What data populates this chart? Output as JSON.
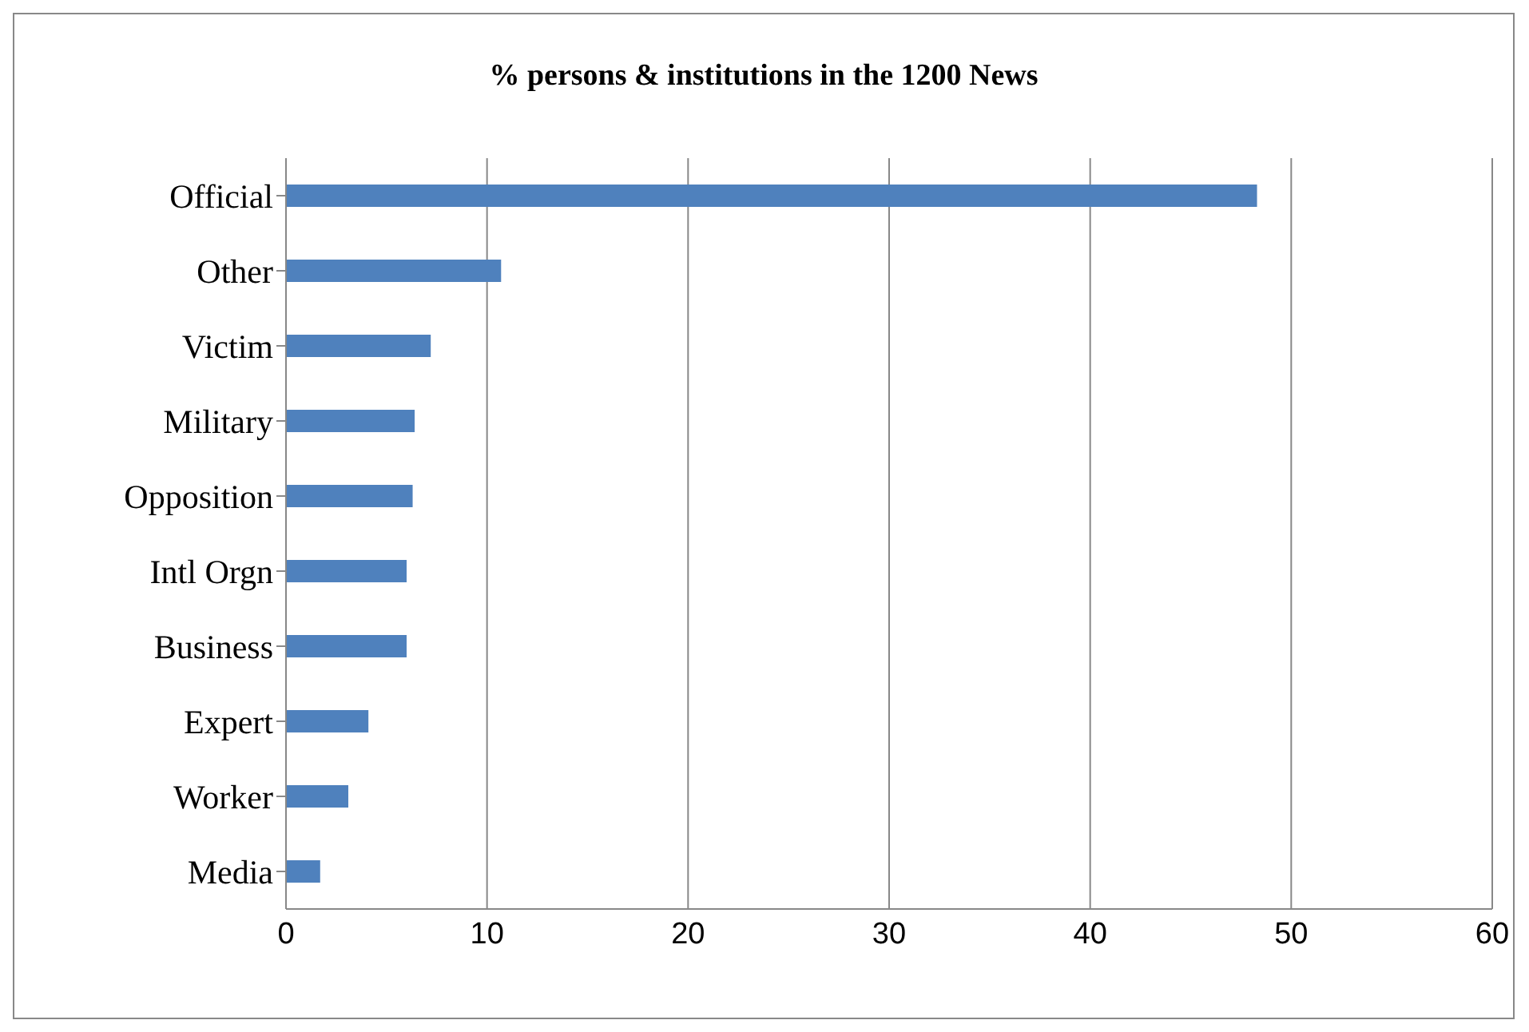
{
  "chart_data": {
    "type": "bar",
    "orientation": "horizontal",
    "title": "% persons & institutions in the 1200 News",
    "categories": [
      "Official",
      "Other",
      "Victim",
      "Military",
      "Opposition",
      "Intl Orgn",
      "Business",
      "Expert",
      "Worker",
      "Media"
    ],
    "values": [
      48.3,
      10.7,
      7.2,
      6.4,
      6.3,
      6.0,
      6.0,
      4.1,
      3.1,
      1.7
    ],
    "color": "#4f81bd",
    "xlim": [
      0,
      60
    ],
    "xticks": [
      0,
      10,
      20,
      30,
      40,
      50,
      60
    ],
    "grid": "x"
  }
}
